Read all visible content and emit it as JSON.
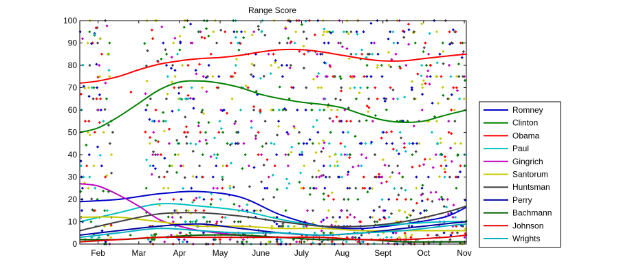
{
  "chart_data": {
    "type": "line",
    "title": "Range Score",
    "xlabel": "",
    "ylabel": "",
    "ylim": [
      0,
      100
    ],
    "y_ticks": [
      0,
      10,
      20,
      30,
      40,
      50,
      60,
      70,
      80,
      90,
      100
    ],
    "x_tick_labels": [
      "Feb",
      "Mar",
      "Apr",
      "May",
      "June",
      "July",
      "Aug",
      "Sept",
      "Oct",
      "Nov"
    ],
    "x_month_range": [
      0.55,
      10.05
    ],
    "grid": false,
    "legend_position": "right",
    "series": [
      {
        "name": "Romney",
        "color": "#0000c8",
        "x": [
          0.55,
          1.5,
          2.5,
          3.5,
          4.5,
          5.5,
          6.5,
          7.5,
          8.5,
          9.5,
          10.05
        ],
        "values": [
          19,
          20,
          22.5,
          23.5,
          21,
          13,
          8,
          7,
          9,
          12,
          16.5
        ]
      },
      {
        "name": "Clinton",
        "color": "#008000",
        "x": [
          0.55,
          1.0,
          1.5,
          2.0,
          2.5,
          3.0,
          3.5,
          4.0,
          4.5,
          5.0,
          5.5,
          6.0,
          6.5,
          7.0,
          7.5,
          8.0,
          8.5,
          9.0,
          9.5,
          10.05
        ],
        "values": [
          50,
          52,
          57,
          63,
          69,
          72.5,
          73,
          72,
          70,
          67,
          65,
          63.5,
          62.5,
          61,
          58,
          55.5,
          54.5,
          55,
          57.5,
          60
        ]
      },
      {
        "name": "Obama",
        "color": "#ff0000",
        "x": [
          0.55,
          1.0,
          1.5,
          2.0,
          2.5,
          3.0,
          3.5,
          4.0,
          4.5,
          5.0,
          5.5,
          6.0,
          6.5,
          7.0,
          7.5,
          8.0,
          8.5,
          9.0,
          9.5,
          10.05
        ],
        "values": [
          72,
          73,
          75,
          78,
          80.5,
          82,
          83,
          83.5,
          84.5,
          86,
          87,
          87,
          86,
          84.5,
          83,
          82,
          82,
          83,
          84,
          85
        ]
      },
      {
        "name": "Paul",
        "color": "#00c0c0",
        "x": [
          0.55,
          1.5,
          2.5,
          3.5,
          4.5,
          5.5,
          6.5,
          7.5,
          8.5,
          9.5,
          10.05
        ],
        "values": [
          10,
          14,
          18,
          17,
          15,
          11,
          8,
          8,
          9,
          10,
          10
        ]
      },
      {
        "name": "Gingrich",
        "color": "#c000c0",
        "x": [
          0.55,
          1.0,
          1.5,
          2.0,
          2.5,
          3.0,
          3.5,
          4.5,
          5.5,
          6.5,
          7.5,
          8.5,
          9.5,
          10.05
        ],
        "values": [
          27,
          26,
          22,
          17,
          11,
          8,
          6,
          4,
          3,
          2,
          2,
          1,
          1,
          1
        ]
      },
      {
        "name": "Santorum",
        "color": "#c8c800",
        "x": [
          0.55,
          1.5,
          2.5,
          3.5,
          4.5,
          5.5,
          6.5,
          7.5,
          8.5,
          9.5,
          10.05
        ],
        "values": [
          12,
          12,
          10,
          8,
          8,
          7,
          7,
          6,
          6,
          6,
          6
        ]
      },
      {
        "name": "Huntsman",
        "color": "#404040",
        "x": [
          0.55,
          1.5,
          2.5,
          3.5,
          4.5,
          5.5,
          6.5,
          7.5,
          8.5,
          9.5,
          10.05
        ],
        "values": [
          6,
          10,
          13.5,
          14,
          12.5,
          10,
          8,
          8,
          10,
          14,
          17
        ]
      },
      {
        "name": "Perry",
        "color": "#0000a0",
        "x": [
          0.55,
          1.5,
          2.5,
          3.5,
          4.5,
          5.5,
          6.5,
          7.5,
          8.5,
          9.5,
          10.05
        ],
        "values": [
          4,
          6,
          8,
          9,
          7,
          5,
          4,
          5,
          7,
          9,
          10
        ]
      },
      {
        "name": "Bachmann",
        "color": "#006000",
        "x": [
          0.55,
          1.5,
          2.5,
          3.5,
          4.5,
          5.5,
          6.5,
          7.5,
          8.5,
          9.5,
          10.05
        ],
        "values": [
          2,
          2,
          3,
          4,
          4,
          3,
          2,
          2,
          1,
          1,
          1
        ]
      },
      {
        "name": "Johnson",
        "color": "#e00000",
        "x": [
          0.55,
          1.5,
          2.5,
          3.5,
          4.5,
          5.5,
          6.5,
          7.5,
          8.5,
          9.5,
          10.05
        ],
        "values": [
          1,
          2,
          3,
          3,
          3,
          3,
          3,
          2,
          2,
          3,
          4
        ]
      },
      {
        "name": "Wrights",
        "color": "#00b0c0",
        "x": [
          0.55,
          1.5,
          2.5,
          3.5,
          4.5,
          5.5,
          6.5,
          7.5,
          8.5,
          9.5,
          10.05
        ],
        "values": [
          3,
          5,
          7,
          6,
          5,
          5,
          4,
          5,
          6,
          8,
          9
        ]
      }
    ],
    "scatter_colors": [
      "#0000c8",
      "#008000",
      "#ff0000",
      "#00c0c0",
      "#c000c0",
      "#c8c800",
      "#404040"
    ],
    "scatter_y_levels": [
      0,
      1,
      2,
      3,
      4,
      5,
      8,
      10,
      12,
      15,
      20,
      25,
      30,
      35,
      40,
      45,
      50,
      55,
      60,
      65,
      70,
      75,
      80,
      85,
      90,
      95,
      100
    ]
  }
}
